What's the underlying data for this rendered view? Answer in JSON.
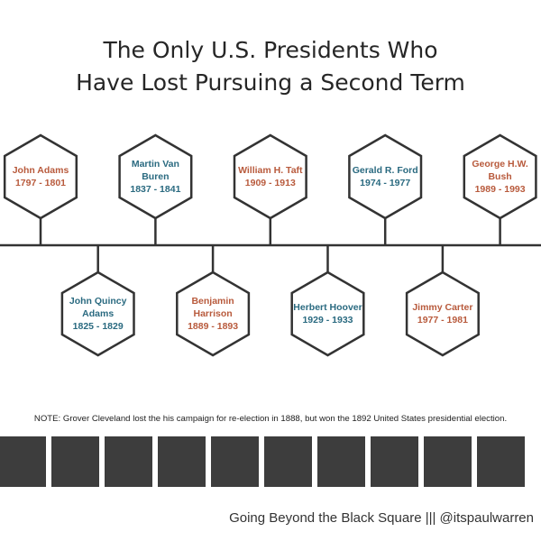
{
  "title": {
    "line1": "The Only U.S. Presidents Who",
    "line2": "Have Lost Pursuing a Second Term"
  },
  "presidents": [
    {
      "name_lines": [
        "John Adams"
      ],
      "years": "1797 - 1801",
      "color": "#b85a3c"
    },
    {
      "name_lines": [
        "John Quincy",
        "Adams"
      ],
      "years": "1825 - 1829",
      "color": "#2a6a80"
    },
    {
      "name_lines": [
        "Martin Van",
        "Buren"
      ],
      "years": "1837 - 1841",
      "color": "#2a6a80"
    },
    {
      "name_lines": [
        "Benjamin",
        "Harrison"
      ],
      "years": "1889 - 1893",
      "color": "#b85a3c"
    },
    {
      "name_lines": [
        "William H. Taft"
      ],
      "years": "1909 - 1913",
      "color": "#b85a3c"
    },
    {
      "name_lines": [
        "Herbert Hoover"
      ],
      "years": "1929 - 1933",
      "color": "#2a6a80"
    },
    {
      "name_lines": [
        "Gerald R. Ford"
      ],
      "years": "1974 - 1977",
      "color": "#2a6a80"
    },
    {
      "name_lines": [
        "Jimmy Carter"
      ],
      "years": "1977 - 1981",
      "color": "#b85a3c"
    },
    {
      "name_lines": [
        "George H.W.",
        "Bush"
      ],
      "years": "1989 - 1993",
      "color": "#b85a3c"
    }
  ],
  "note": "NOTE: Grover Cleveland lost the his campaign for re-election in 1888, but won the 1892 United States presidential election.",
  "footer": "Going Beyond the Black Square ||| @itspaulwarren",
  "colors": {
    "republican": "#b85a3c",
    "democrat": "#2a6a80",
    "frame": "#3d3d3d",
    "line": "#333333"
  }
}
